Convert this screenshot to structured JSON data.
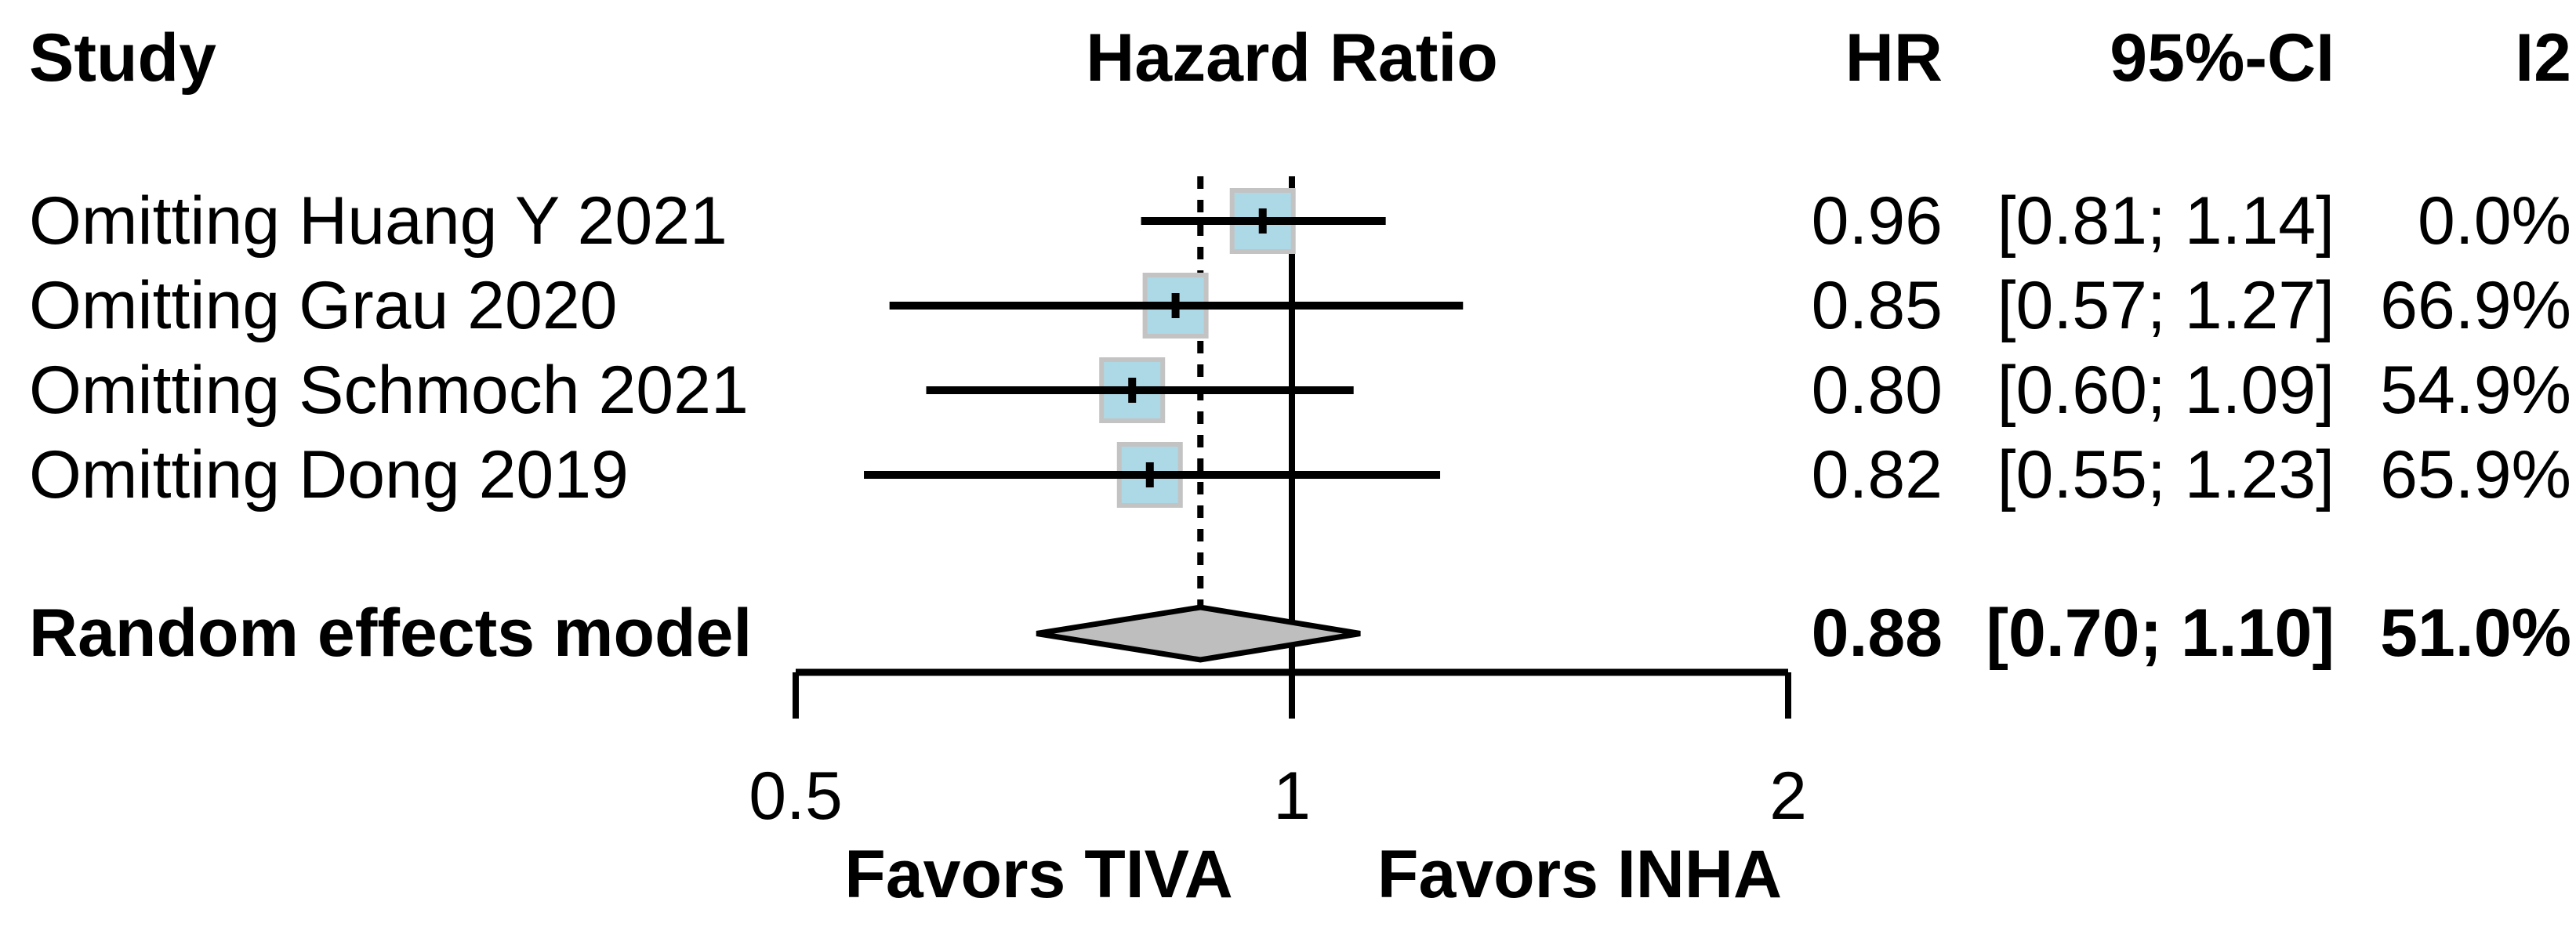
{
  "columns": {
    "study": "Study",
    "plot": "Hazard Ratio",
    "hr": "HR",
    "ci": "95%-CI",
    "i2": "I2"
  },
  "chart_data": {
    "type": "forest",
    "title": "Hazard Ratio",
    "x_scale": "log",
    "xlim": [
      0.5,
      2
    ],
    "axis_ticks": [
      0.5,
      1,
      2
    ],
    "axis_tick_labels": [
      "0.5",
      "1",
      "2"
    ],
    "ref_line": 1.0,
    "dashed_line_at": 0.88,
    "favors_left": "Favors TIVA",
    "favors_right": "Favors INHA",
    "studies": [
      {
        "label": "Omitting Huang Y 2021",
        "hr": 0.96,
        "ci_low": 0.81,
        "ci_high": 1.14,
        "hr_text": "0.96",
        "ci_text": "[0.81; 1.14]",
        "i2_text": "0.0%"
      },
      {
        "label": "Omitting Grau 2020",
        "hr": 0.85,
        "ci_low": 0.57,
        "ci_high": 1.27,
        "hr_text": "0.85",
        "ci_text": "[0.57; 1.27]",
        "i2_text": "66.9%"
      },
      {
        "label": "Omitting Schmoch 2021",
        "hr": 0.8,
        "ci_low": 0.6,
        "ci_high": 1.09,
        "hr_text": "0.80",
        "ci_text": "[0.60; 1.09]",
        "i2_text": "54.9%"
      },
      {
        "label": "Omitting Dong 2019",
        "hr": 0.82,
        "ci_low": 0.55,
        "ci_high": 1.23,
        "hr_text": "0.82",
        "ci_text": "[0.55; 1.23]",
        "i2_text": "65.9%"
      }
    ],
    "pooled": {
      "label": "Random effects model",
      "hr": 0.88,
      "ci_low": 0.7,
      "ci_high": 1.1,
      "hr_text": "0.88",
      "ci_text": "[0.70; 1.10]",
      "i2_text": "51.0%"
    }
  },
  "colors": {
    "square_fill": "#add8e6",
    "square_border": "#c3c3c3",
    "diamond_fill": "#bebebe",
    "line": "#000000"
  }
}
